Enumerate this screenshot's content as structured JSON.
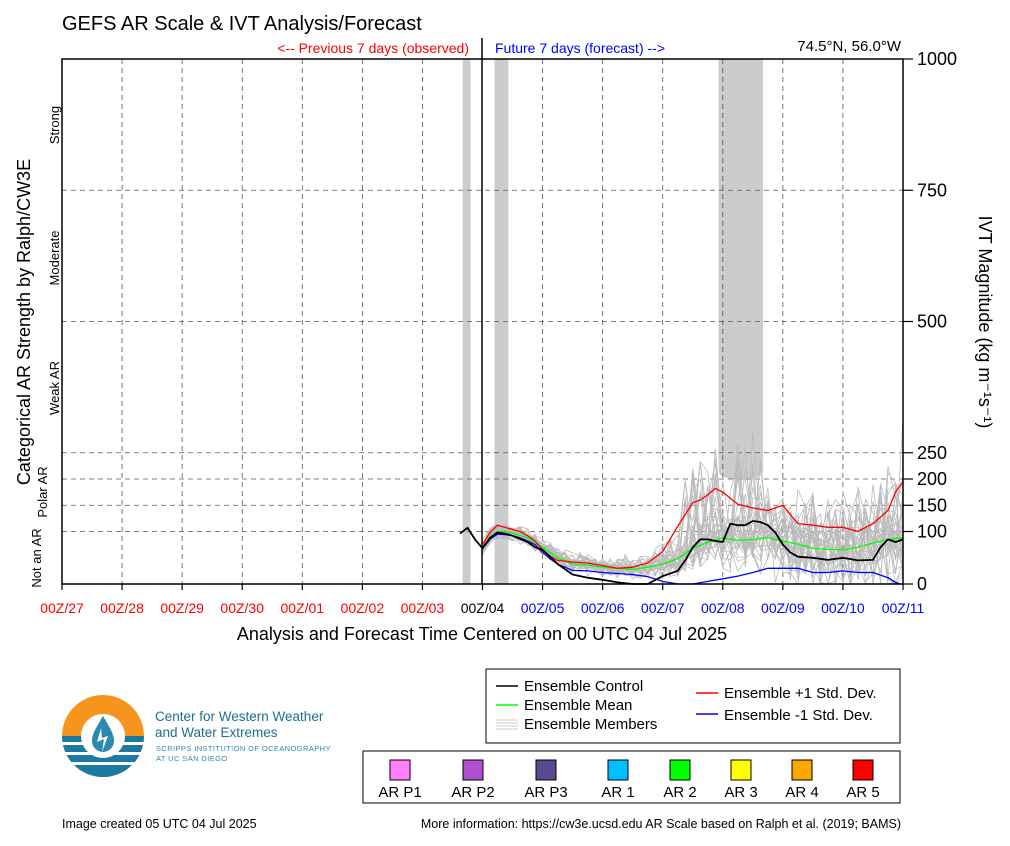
{
  "chart_data": {
    "type": "line",
    "title": "GEFS AR Scale & IVT Analysis/Forecast",
    "location": "74.5°N, 56.0°W",
    "observed_label": "<-- Previous 7 days (observed)",
    "forecast_label": "Future 7 days (forecast) -->",
    "xlabel": "Analysis and Forecast Time Centered on 00 UTC 04 Jul 2025",
    "ylabel_left": "Categorical AR Strength by Ralph/CW3E",
    "ylabel_right": "IVT Magnitude (kg m⁻¹s⁻¹)",
    "x_ticks": [
      "00Z/27",
      "00Z/28",
      "00Z/29",
      "00Z/30",
      "00Z/01",
      "00Z/02",
      "00Z/03",
      "00Z/04",
      "00Z/05",
      "00Z/06",
      "00Z/07",
      "00Z/08",
      "00Z/09",
      "00Z/10",
      "00Z/11"
    ],
    "x_tick_colors": [
      "#ff0000",
      "#ff0000",
      "#ff0000",
      "#ff0000",
      "#ff0000",
      "#ff0000",
      "#ff0000",
      "#000000",
      "#0000ff",
      "#0000ff",
      "#0000ff",
      "#0000ff",
      "#0000ff",
      "#0000ff",
      "#0000ff"
    ],
    "xlim_days": [
      -7,
      7
    ],
    "ylim": [
      0,
      1000
    ],
    "y_ticks": [
      "0",
      "100",
      "150",
      "200",
      "250",
      "500",
      "750",
      "1000"
    ],
    "y_tick_values": [
      0,
      100,
      150,
      200,
      250,
      500,
      750,
      1000
    ],
    "categories": [
      {
        "label": "Strong"
      },
      {
        "label": "Moderate"
      },
      {
        "label": "Weak AR"
      },
      {
        "label": "Polar AR"
      },
      {
        "label": "Not an AR"
      }
    ],
    "grid": true,
    "gray_bands": [
      {
        "x": [
          -0.33,
          -0.2
        ],
        "y": [
          0,
          1000
        ]
      },
      {
        "x": [
          0.2,
          0.43
        ],
        "y": [
          0,
          1000
        ]
      },
      {
        "x": [
          3.93,
          4.67
        ],
        "y": [
          215,
          1000
        ]
      }
    ],
    "series": [
      {
        "name": "Ensemble Control",
        "color": "#000000",
        "x": [
          -0.375,
          -0.25,
          -0.125,
          0,
          0.125,
          0.25,
          0.375,
          0.5,
          0.625,
          0.75,
          0.875,
          1.0,
          1.125,
          1.25,
          1.5,
          1.75,
          2.0,
          2.25,
          2.5,
          2.75,
          3.0,
          3.25,
          3.375,
          3.5,
          3.625,
          3.75,
          3.875,
          4.0,
          4.125,
          4.25,
          4.375,
          4.5,
          4.625,
          4.75,
          4.875,
          5.0,
          5.125,
          5.25,
          5.5,
          5.75,
          6.0,
          6.25,
          6.5,
          6.625,
          6.75,
          6.875,
          7.0
        ],
        "y": [
          96,
          107,
          85,
          68,
          88,
          98,
          96,
          92,
          86,
          80,
          70,
          65,
          52,
          38,
          18,
          12,
          8,
          3,
          0,
          0,
          15,
          25,
          45,
          70,
          85,
          85,
          82,
          80,
          115,
          112,
          112,
          120,
          118,
          112,
          98,
          75,
          60,
          52,
          50,
          46,
          50,
          45,
          46,
          70,
          85,
          80,
          85
        ]
      },
      {
        "name": "Ensemble Mean",
        "color": "#00ff00",
        "x": [
          0,
          0.125,
          0.25,
          0.375,
          0.5,
          0.75,
          1.0,
          1.25,
          1.5,
          1.75,
          2.0,
          2.25,
          2.5,
          2.75,
          3.0,
          3.25,
          3.5,
          3.75,
          4.0,
          4.25,
          4.5,
          4.75,
          5.0,
          5.25,
          5.5,
          5.75,
          6.0,
          6.25,
          6.5,
          6.75,
          7.0
        ],
        "y": [
          68,
          90,
          100,
          100,
          97,
          88,
          70,
          50,
          38,
          36,
          32,
          30,
          28,
          32,
          38,
          48,
          68,
          80,
          88,
          83,
          85,
          88,
          82,
          76,
          68,
          66,
          65,
          70,
          78,
          85,
          88
        ]
      },
      {
        "name": "Ensemble +1 Std. Dev.",
        "color": "#ff0000",
        "x": [
          0,
          0.125,
          0.25,
          0.375,
          0.5,
          0.625,
          0.75,
          0.875,
          1.0,
          1.125,
          1.25,
          1.5,
          1.75,
          2.0,
          2.25,
          2.5,
          2.75,
          3.0,
          3.25,
          3.5,
          3.625,
          3.75,
          3.875,
          4.0,
          4.25,
          4.5,
          4.75,
          5.0,
          5.125,
          5.25,
          5.5,
          5.75,
          6.0,
          6.25,
          6.5,
          6.75,
          6.875,
          7.0
        ],
        "y": [
          75,
          98,
          112,
          108,
          104,
          100,
          92,
          82,
          65,
          53,
          45,
          42,
          40,
          35,
          30,
          32,
          40,
          62,
          110,
          155,
          160,
          170,
          182,
          175,
          152,
          145,
          140,
          150,
          132,
          115,
          112,
          108,
          108,
          100,
          115,
          140,
          175,
          195
        ]
      },
      {
        "name": "Ensemble -1 Std. Dev.",
        "color": "#0000ff",
        "x": [
          0,
          0.125,
          0.25,
          0.375,
          0.5,
          0.625,
          0.75,
          0.875,
          1.0,
          1.125,
          1.25,
          1.5,
          1.75,
          2.0,
          2.25,
          2.5,
          2.75,
          3.0,
          3.25,
          3.5,
          3.75,
          4.0,
          4.25,
          4.5,
          4.75,
          5.0,
          5.25,
          5.5,
          5.75,
          6.0,
          6.25,
          6.5,
          6.75,
          6.875,
          6.95
        ],
        "y": [
          68,
          85,
          95,
          94,
          92,
          88,
          82,
          75,
          60,
          48,
          38,
          26,
          25,
          22,
          20,
          18,
          14,
          5,
          -20,
          -30,
          5,
          10,
          15,
          22,
          30,
          30,
          30,
          22,
          22,
          25,
          22,
          22,
          12,
          3,
          -5
        ]
      }
    ],
    "ensemble_members": {
      "name": "Ensemble Members",
      "color": "#bbbbbb",
      "count": 30
    }
  },
  "legend": {
    "items": [
      {
        "label": "Ensemble Control",
        "color": "#000000"
      },
      {
        "label": "Ensemble Mean",
        "color": "#00ff00"
      },
      {
        "label": "Ensemble Members",
        "color": "#bbbbbb"
      },
      {
        "label": "Ensemble +1 Std. Dev.",
        "color": "#ff0000"
      },
      {
        "label": "Ensemble -1 Std. Dev.",
        "color": "#0000ff"
      }
    ]
  },
  "ar_scale": [
    {
      "label": "AR P1",
      "color": "#ff80ff"
    },
    {
      "label": "AR P2",
      "color": "#b050d0"
    },
    {
      "label": "AR P3",
      "color": "#5a4890"
    },
    {
      "label": "AR 1",
      "color": "#00bfff"
    },
    {
      "label": "AR 2",
      "color": "#00ff00"
    },
    {
      "label": "AR 3",
      "color": "#ffff00"
    },
    {
      "label": "AR 4",
      "color": "#ffa500"
    },
    {
      "label": "AR 5",
      "color": "#ff0000"
    }
  ],
  "logo": {
    "line1": "Center for Western Weather",
    "line2": "and Water Extremes",
    "sub1": "SCRIPPS INSTITUTION OF OCEANOGRAPHY",
    "sub2": "AT UC SAN DIEGO"
  },
  "footer": {
    "created": "Image created 05 UTC 04 Jul 2025",
    "more_info": "More information: https://cw3e.ucsd.edu AR Scale based on Ralph et al. (2019; BAMS)"
  }
}
